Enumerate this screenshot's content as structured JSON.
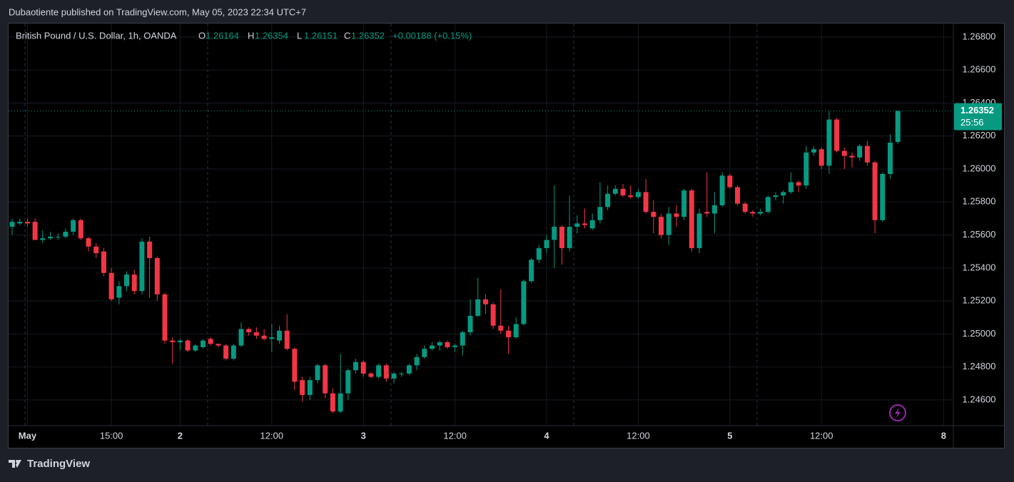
{
  "header": {
    "published": "Dubaotiente published on TradingView.com, May 05, 2023 22:34 UTC+7"
  },
  "footer": {
    "brand": "TradingView"
  },
  "chart_data": {
    "type": "candlestick",
    "title": "British Pound / U.S. Dollar, 1h, OANDA",
    "legend": [
      {
        "key": "O",
        "value": "1.26164"
      },
      {
        "key": "H",
        "value": "1.26354"
      },
      {
        "key": "L",
        "value": "1.26151"
      },
      {
        "key": "C",
        "value": "1.26352"
      }
    ],
    "change": "+0.00188 (+0.15%)",
    "up_color": "#089981",
    "down_color": "#f23645",
    "grid": true,
    "x": [
      0,
      1,
      2,
      3,
      4,
      5,
      6,
      7,
      8,
      9,
      10,
      11,
      12,
      13,
      14,
      15,
      16,
      17,
      18,
      19,
      20,
      21,
      22,
      23,
      24,
      25,
      26,
      27,
      28,
      29,
      30,
      31,
      32,
      33,
      34,
      35,
      36,
      37,
      38,
      39,
      40,
      41,
      42,
      43,
      44,
      45,
      46,
      47,
      48,
      49,
      50,
      51,
      52,
      53,
      54,
      55,
      56,
      57,
      58,
      59,
      60,
      61,
      62,
      63,
      64,
      65,
      66,
      67,
      68,
      69,
      70,
      71,
      72,
      73,
      74,
      75,
      76,
      77,
      78,
      79,
      80,
      81,
      82,
      83,
      84,
      85,
      86,
      87,
      88,
      89,
      90,
      91,
      92,
      93,
      94,
      95,
      96,
      97,
      98,
      99,
      100,
      101,
      102,
      103,
      104,
      105,
      106,
      107,
      108,
      109,
      110,
      111,
      112,
      113,
      114,
      115,
      116
    ],
    "open": [
      1.2565,
      1.2567,
      1.2568,
      1.2568,
      1.2557,
      1.2558,
      1.2559,
      1.2559,
      1.2562,
      1.2569,
      1.2558,
      1.2553,
      1.255,
      1.2537,
      1.2522,
      1.2529,
      1.2536,
      1.2526,
      1.2556,
      1.2546,
      1.2524,
      1.2496,
      1.2495,
      1.2496,
      1.249,
      1.2492,
      1.2497,
      1.2494,
      1.2493,
      1.2485,
      1.2493,
      1.2503,
      1.2501,
      1.2499,
      1.2497,
      1.2496,
      1.2502,
      1.2491,
      1.2472,
      1.2463,
      1.2472,
      1.2481,
      1.2464,
      1.2453,
      1.2464,
      1.2478,
      1.2483,
      1.2476,
      1.2474,
      1.2481,
      1.2473,
      1.2476,
      1.2476,
      1.2481,
      1.2486,
      1.2491,
      1.2493,
      1.2495,
      1.2492,
      1.2493,
      1.2501,
      1.2511,
      1.2521,
      1.2518,
      1.2505,
      1.2502,
      1.2498,
      1.2506,
      1.2532,
      1.2545,
      1.2552,
      1.2557,
      1.2565,
      1.2552,
      1.2565,
      1.2567,
      1.2564,
      1.2569,
      1.2577,
      1.2585,
      1.2588,
      1.2584,
      1.2583,
      1.2586,
      1.2574,
      1.2571,
      1.256,
      1.2573,
      1.2571,
      1.2587,
      1.2552,
      1.2574,
      1.2573,
      1.2578,
      1.2596,
      1.2589,
      1.2579,
      1.2574,
      1.2573,
      1.2574,
      1.2583,
      1.2584,
      1.2586,
      1.2592,
      1.259,
      1.261,
      1.2612,
      1.2602,
      1.263,
      1.2611,
      1.2608,
      1.2607,
      1.2614,
      1.2604,
      1.2569,
      1.2597,
      1.26164
    ],
    "high": [
      1.257,
      1.257,
      1.257,
      1.257,
      1.2563,
      1.2562,
      1.2561,
      1.2564,
      1.257,
      1.257,
      1.2559,
      1.2555,
      1.2552,
      1.254,
      1.2532,
      1.2538,
      1.2539,
      1.2558,
      1.2559,
      1.2547,
      1.2525,
      1.2498,
      1.2497,
      1.2497,
      1.2494,
      1.2497,
      1.2498,
      1.2494,
      1.2494,
      1.2494,
      1.2507,
      1.2504,
      1.2504,
      1.2503,
      1.2506,
      1.2505,
      1.2512,
      1.2492,
      1.2474,
      1.2474,
      1.2482,
      1.2482,
      1.2467,
      1.2488,
      1.2479,
      1.2485,
      1.2484,
      1.2477,
      1.2482,
      1.2482,
      1.2477,
      1.2477,
      1.2482,
      1.2488,
      1.2493,
      1.2495,
      1.2496,
      1.2496,
      1.2494,
      1.2502,
      1.2521,
      1.2534,
      1.2524,
      1.2519,
      1.2527,
      1.2505,
      1.251,
      1.2533,
      1.2546,
      1.2554,
      1.256,
      1.259,
      1.2566,
      1.2584,
      1.2572,
      1.2576,
      1.2573,
      1.2592,
      1.259,
      1.259,
      1.2591,
      1.259,
      1.2588,
      1.2594,
      1.2581,
      1.2573,
      1.2577,
      1.2578,
      1.2588,
      1.2588,
      1.2576,
      1.2598,
      1.2586,
      1.2598,
      1.2597,
      1.259,
      1.258,
      1.2575,
      1.2576,
      1.2584,
      1.2586,
      1.2587,
      1.2598,
      1.2593,
      1.2614,
      1.2614,
      1.2613,
      1.2635,
      1.2631,
      1.2613,
      1.261,
      1.2615,
      1.2617,
      1.2605,
      1.2598,
      1.2621,
      1.26354
    ],
    "low": [
      1.256,
      1.2566,
      1.2565,
      1.2557,
      1.2555,
      1.2557,
      1.2557,
      1.2558,
      1.256,
      1.2557,
      1.255,
      1.2546,
      1.2535,
      1.252,
      1.2518,
      1.2526,
      1.2524,
      1.2524,
      1.2522,
      1.252,
      1.2494,
      1.2482,
      1.249,
      1.2489,
      1.2489,
      1.2491,
      1.2493,
      1.2492,
      1.2484,
      1.2484,
      1.2492,
      1.2499,
      1.2497,
      1.2496,
      1.2489,
      1.2494,
      1.249,
      1.2466,
      1.2459,
      1.246,
      1.247,
      1.2461,
      1.2452,
      1.2452,
      1.246,
      1.2476,
      1.2474,
      1.2473,
      1.2473,
      1.2471,
      1.247,
      1.2474,
      1.2475,
      1.2478,
      1.2485,
      1.249,
      1.249,
      1.2491,
      1.2489,
      1.2487,
      1.2499,
      1.251,
      1.2512,
      1.2503,
      1.25,
      1.2488,
      1.2497,
      1.2505,
      1.2531,
      1.2543,
      1.2549,
      1.254,
      1.2542,
      1.255,
      1.2561,
      1.2564,
      1.2563,
      1.2567,
      1.2575,
      1.2584,
      1.2583,
      1.2582,
      1.2582,
      1.2573,
      1.2561,
      1.2558,
      1.2554,
      1.2565,
      1.2569,
      1.255,
      1.2549,
      1.2571,
      1.2561,
      1.2577,
      1.2588,
      1.2578,
      1.2573,
      1.2571,
      1.2572,
      1.2573,
      1.2581,
      1.2579,
      1.2585,
      1.2586,
      1.2588,
      1.2608,
      1.26,
      1.2597,
      1.261,
      1.26,
      1.2601,
      1.2605,
      1.2602,
      1.2561,
      1.2568,
      1.2594,
      1.26151
    ],
    "close": [
      1.2568,
      1.2568,
      1.2567,
      1.2557,
      1.2558,
      1.2559,
      1.2559,
      1.2562,
      1.2569,
      1.2558,
      1.2553,
      1.2549,
      1.2537,
      1.2521,
      1.2529,
      1.2536,
      1.2526,
      1.2556,
      1.2546,
      1.2524,
      1.2496,
      1.2495,
      1.2496,
      1.249,
      1.2493,
      1.2496,
      1.2494,
      1.2493,
      1.2485,
      1.2493,
      1.2503,
      1.2501,
      1.2499,
      1.2497,
      1.2498,
      1.2502,
      1.2491,
      1.2471,
      1.2463,
      1.2472,
      1.2481,
      1.2464,
      1.2453,
      1.2464,
      1.2478,
      1.2483,
      1.2476,
      1.2474,
      1.2481,
      1.2473,
      1.2476,
      1.2476,
      1.2481,
      1.2486,
      1.2491,
      1.2493,
      1.2495,
      1.2492,
      1.2493,
      1.2501,
      1.2511,
      1.2521,
      1.2518,
      1.2505,
      1.2502,
      1.2498,
      1.2506,
      1.2532,
      1.2545,
      1.2552,
      1.2557,
      1.2565,
      1.2552,
      1.2565,
      1.2567,
      1.2566,
      1.2569,
      1.2577,
      1.2585,
      1.2588,
      1.2584,
      1.2583,
      1.2586,
      1.2574,
      1.2571,
      1.256,
      1.2573,
      1.2571,
      1.2587,
      1.2552,
      1.2573,
      1.2573,
      1.2578,
      1.2596,
      1.2589,
      1.2579,
      1.2574,
      1.2573,
      1.2574,
      1.2583,
      1.2584,
      1.2586,
      1.2592,
      1.259,
      1.261,
      1.2612,
      1.2602,
      1.263,
      1.2611,
      1.2608,
      1.2607,
      1.2614,
      1.2604,
      1.2569,
      1.2597,
      1.2616,
      1.26352
    ],
    "xlim": [
      -0.47,
      123.27
    ],
    "xticks": [
      {
        "value": 2,
        "label": "May"
      },
      {
        "value": 13,
        "label": "15:00"
      },
      {
        "value": 22,
        "label": "2"
      },
      {
        "value": 34,
        "label": "12:00"
      },
      {
        "value": 46,
        "label": "3"
      },
      {
        "value": 58,
        "label": "12:00"
      },
      {
        "value": 70,
        "label": "4"
      },
      {
        "value": 82,
        "label": "12:00"
      },
      {
        "value": 94,
        "label": "5"
      },
      {
        "value": 106,
        "label": "12:00"
      },
      {
        "value": 122,
        "label": "8"
      }
    ],
    "ylim": [
      1.24444,
      1.26882
    ],
    "yticks": [
      {
        "value": 1.246,
        "label": "1.24600"
      },
      {
        "value": 1.248,
        "label": "1.24800"
      },
      {
        "value": 1.25,
        "label": "1.25000"
      },
      {
        "value": 1.252,
        "label": "1.25200"
      },
      {
        "value": 1.254,
        "label": "1.25400"
      },
      {
        "value": 1.256,
        "label": "1.25600"
      },
      {
        "value": 1.258,
        "label": "1.25800"
      },
      {
        "value": 1.26,
        "label": "1.26000"
      },
      {
        "value": 1.262,
        "label": "1.26200"
      },
      {
        "value": 1.264,
        "label": "1.26400"
      },
      {
        "value": 1.266,
        "label": "1.26600"
      },
      {
        "value": 1.268,
        "label": "1.26800"
      }
    ],
    "last_price": {
      "value": 1.26352,
      "label": "1.26352"
    },
    "countdown": "25:56"
  }
}
